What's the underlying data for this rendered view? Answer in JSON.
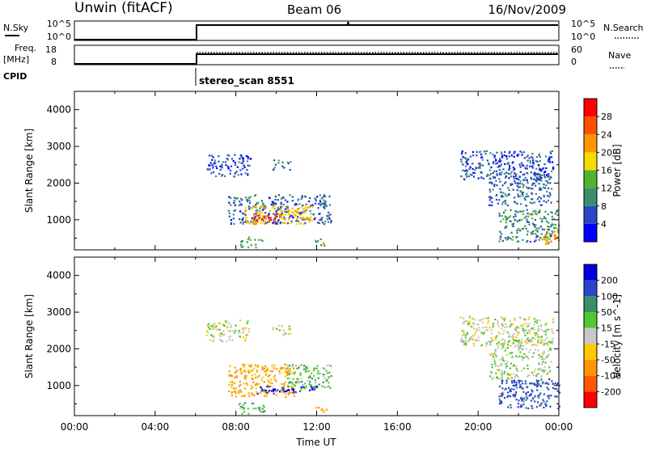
{
  "header": {
    "station": "Unwin (fitACF)",
    "beam": "Beam 06",
    "date": "16/Nov/2009"
  },
  "summary_panels": {
    "nsky": {
      "left_label": "N.Sky",
      "left_ticks": [
        "10^5",
        "10^0"
      ],
      "right_ticks": [
        "10^5",
        "10^0"
      ],
      "right_label": "N.Search"
    },
    "freq": {
      "left_label_1": "Freq.",
      "left_label_2": "[MHz]",
      "left_ticks": [
        "18",
        "8"
      ],
      "right_ticks": [
        "60",
        "0"
      ],
      "right_label": "Nave"
    },
    "cpid": {
      "label": "CPID",
      "text": "stereo_scan 8551"
    }
  },
  "colors": {
    "power_scale": [
      "#0000ff",
      "#2a46c8",
      "#3c8c6e",
      "#50b432",
      "#f5dc00",
      "#ff9600",
      "#ff5000",
      "#ff0000"
    ],
    "velocity_scale": [
      "#ff0000",
      "#ff5a00",
      "#ff9600",
      "#ffc800",
      "#c8c8c8",
      "#50c832",
      "#3c8c6e",
      "#2a46c8",
      "#0000dc"
    ]
  },
  "chart_data": [
    {
      "type": "heatmap",
      "title": "",
      "xlabel": "",
      "ylabel": "Slant Range [km]",
      "xlim": [
        0,
        24
      ],
      "ylim": [
        180,
        4500
      ],
      "yticks": [
        "1000",
        "2000",
        "3000",
        "4000"
      ],
      "colorbar": {
        "label": "Power [dB]",
        "range": [
          0,
          32
        ],
        "ticks": [
          "4",
          "8",
          "12",
          "16",
          "20",
          "24",
          "28"
        ]
      },
      "scatter_regions": [
        {
          "x": [
            6.5,
            8.7
          ],
          "y": [
            2200,
            2800
          ],
          "value": 6
        },
        {
          "x": [
            9.8,
            10.7
          ],
          "y": [
            2380,
            2650
          ],
          "value": 10
        },
        {
          "x": [
            7.6,
            12.7
          ],
          "y": [
            900,
            1700
          ],
          "value": 7
        },
        {
          "x": [
            8.4,
            11.8
          ],
          "y": [
            900,
            1400
          ],
          "value": 20
        },
        {
          "x": [
            8.8,
            10.4
          ],
          "y": [
            950,
            1200
          ],
          "value": 26
        },
        {
          "x": [
            8.1,
            9.4
          ],
          "y": [
            250,
            550
          ],
          "value": 12
        },
        {
          "x": [
            11.9,
            12.6
          ],
          "y": [
            300,
            500
          ],
          "value": 14
        },
        {
          "x": [
            19.1,
            23.7
          ],
          "y": [
            2100,
            2900
          ],
          "value": 6
        },
        {
          "x": [
            20.5,
            23.6
          ],
          "y": [
            1400,
            2300
          ],
          "value": 8
        },
        {
          "x": [
            21.0,
            24.0
          ],
          "y": [
            400,
            1300
          ],
          "value": 10
        },
        {
          "x": [
            23.1,
            24.0
          ],
          "y": [
            350,
            700
          ],
          "value": 22
        }
      ]
    },
    {
      "type": "heatmap",
      "title": "",
      "xlabel": "Time UT",
      "ylabel": "Slant Range [km]",
      "xlim": [
        0,
        24
      ],
      "ylim": [
        180,
        4500
      ],
      "xticks": [
        "00:00",
        "04:00",
        "08:00",
        "12:00",
        "16:00",
        "20:00",
        "00:00"
      ],
      "yticks": [
        "1000",
        "2000",
        "3000",
        "4000"
      ],
      "colorbar": {
        "label": "Velocity [m s^-1]",
        "range": [
          -250,
          250
        ],
        "ticks": [
          "-200",
          "-100",
          "-50",
          "-15",
          "15",
          "50",
          "100",
          "200"
        ]
      },
      "scatter_regions": [
        {
          "x": [
            6.5,
            8.7
          ],
          "y": [
            2200,
            2800
          ],
          "value": 0
        },
        {
          "x": [
            9.8,
            10.7
          ],
          "y": [
            2380,
            2650
          ],
          "value": 0
        },
        {
          "x": [
            7.6,
            11.0
          ],
          "y": [
            700,
            1600
          ],
          "value": -60
        },
        {
          "x": [
            10.5,
            12.7
          ],
          "y": [
            900,
            1600
          ],
          "value": 30
        },
        {
          "x": [
            9.0,
            12.0
          ],
          "y": [
            800,
            1000
          ],
          "value": 200
        },
        {
          "x": [
            8.1,
            9.4
          ],
          "y": [
            250,
            550
          ],
          "value": 40
        },
        {
          "x": [
            11.9,
            12.6
          ],
          "y": [
            300,
            500
          ],
          "value": -60
        },
        {
          "x": [
            19.1,
            23.7
          ],
          "y": [
            2100,
            2900
          ],
          "value": 0
        },
        {
          "x": [
            20.5,
            23.6
          ],
          "y": [
            1200,
            2300
          ],
          "value": 10
        },
        {
          "x": [
            21.0,
            24.0
          ],
          "y": [
            400,
            1200
          ],
          "value": 120
        }
      ]
    }
  ]
}
